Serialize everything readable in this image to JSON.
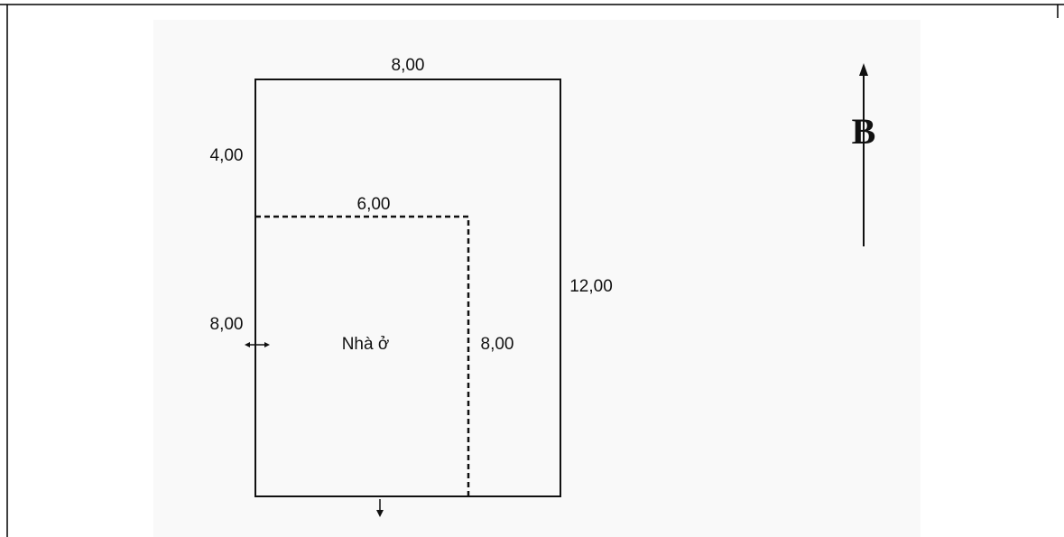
{
  "plan": {
    "top_width": "8,00",
    "left_upper": "4,00",
    "house_width": "6,00",
    "right_length": "12,00",
    "left_lower": "8,00",
    "house_label": "Nhà ở",
    "house_length": "8,00",
    "north": "B"
  }
}
